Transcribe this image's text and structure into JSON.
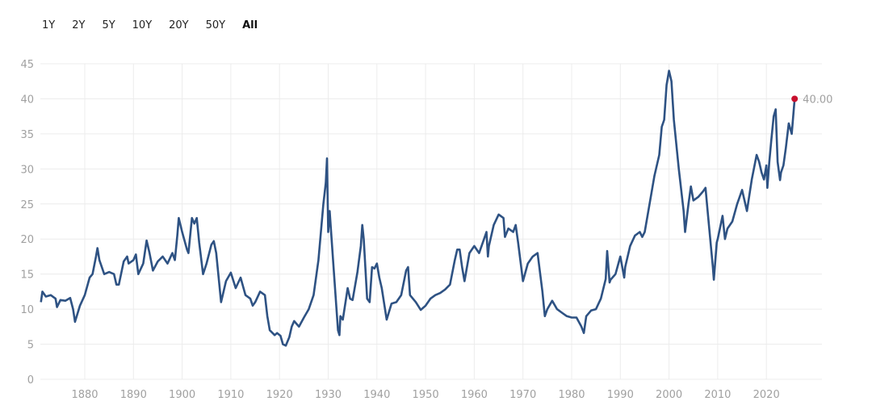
{
  "range_buttons": [
    {
      "label": "1Y",
      "active": false
    },
    {
      "label": "2Y",
      "active": false
    },
    {
      "label": "5Y",
      "active": false
    },
    {
      "label": "10Y",
      "active": false
    },
    {
      "label": "20Y",
      "active": false
    },
    {
      "label": "50Y",
      "active": false
    },
    {
      "label": "All",
      "active": true
    }
  ],
  "chart_data": {
    "type": "line",
    "title": "",
    "xlabel": "",
    "ylabel": "",
    "xlim": [
      1871,
      2025.8
    ],
    "ylim": [
      0,
      45
    ],
    "yticks": [
      "0",
      "5",
      "10",
      "15",
      "20",
      "25",
      "30",
      "35",
      "40",
      "45"
    ],
    "xticks": [
      "1880",
      "1890",
      "1900",
      "1910",
      "1920",
      "1930",
      "1940",
      "1950",
      "1960",
      "1970",
      "1980",
      "1990",
      "2000",
      "2010",
      "2020"
    ],
    "grid": true,
    "colors": {
      "line": "#2e5283",
      "last_point": "#c8102e",
      "grid": "#ececec",
      "tick_text": "#a0a0a0"
    },
    "last_value_label": "40.00",
    "series": [
      {
        "x": [
          1871,
          1871.3,
          1872,
          1873,
          1874,
          1874.3,
          1875,
          1876,
          1877,
          1877.6,
          1878,
          1879,
          1880,
          1881,
          1881.6,
          1882.3,
          1882.6,
          1883,
          1884,
          1885,
          1886,
          1886.5,
          1887,
          1888,
          1888.7,
          1889,
          1890,
          1890.5,
          1891,
          1892,
          1892.7,
          1893.3,
          1894,
          1895,
          1896,
          1897,
          1898,
          1898.5,
          1899,
          1899.3,
          1900,
          1901,
          1901.3,
          1902,
          1902.5,
          1903,
          1903.5,
          1904.3,
          1905,
          1906,
          1906.5,
          1907,
          1908,
          1909,
          1910,
          1911,
          1912,
          1913,
          1914,
          1914.5,
          1915,
          1916,
          1917,
          1917.5,
          1918,
          1919,
          1919.5,
          1920.2,
          1920.7,
          1921.3,
          1922,
          1922.5,
          1923,
          1924,
          1925,
          1926,
          1927,
          1928,
          1929,
          1929.5,
          1929.75,
          1930,
          1930.3,
          1931,
          1932,
          1932.3,
          1932.5,
          1933,
          1934,
          1934.5,
          1935,
          1936,
          1936.7,
          1937,
          1937.3,
          1938,
          1938.5,
          1939,
          1939.5,
          1940,
          1940.5,
          1941,
          1942,
          1943,
          1944,
          1945,
          1946,
          1946.4,
          1946.8,
          1948,
          1949,
          1950,
          1951,
          1952,
          1953,
          1954,
          1955,
          1956,
          1956.5,
          1957,
          1957.5,
          1958,
          1959,
          1960,
          1961,
          1962,
          1962.5,
          1962.8,
          1963,
          1964,
          1965,
          1966,
          1966.3,
          1967,
          1968,
          1968.5,
          1969,
          1970,
          1971,
          1972,
          1973,
          1974,
          1974.5,
          1975,
          1976,
          1977,
          1978,
          1979,
          1980,
          1981,
          1982,
          1982.5,
          1983,
          1984,
          1985,
          1986,
          1987,
          1987.3,
          1987.8,
          1988,
          1989,
          1990,
          1990.8,
          1991,
          1992,
          1993,
          1994,
          1994.5,
          1995,
          1996,
          1997,
          1998,
          1998.5,
          1999,
          1999.5,
          2000,
          2000.5,
          2001,
          2002,
          2003,
          2003.3,
          2004,
          2004.5,
          2005,
          2006,
          2007,
          2007.5,
          2008,
          2009,
          2009.2,
          2009.8,
          2010,
          2011,
          2011.5,
          2012,
          2013,
          2014,
          2015,
          2016,
          2017,
          2018,
          2018.5,
          2019,
          2019.5,
          2020,
          2020.2,
          2020.6,
          2021,
          2021.5,
          2021.9,
          2022.3,
          2022.8,
          2023,
          2023.5,
          2024,
          2024.6,
          2025.2,
          2025.8
        ],
        "values": [
          11,
          12.5,
          11.8,
          12,
          11.5,
          10.3,
          11.3,
          11.2,
          11.6,
          10,
          8.2,
          10.5,
          12,
          14.5,
          15,
          17.5,
          18.7,
          17,
          15,
          15.3,
          15,
          13.5,
          13.5,
          16.8,
          17.5,
          16.5,
          17,
          17.8,
          15,
          16.5,
          19.8,
          18,
          15.5,
          16.8,
          17.5,
          16.5,
          18,
          17,
          20.5,
          23,
          21,
          18.5,
          18,
          23,
          22.2,
          23,
          19.5,
          15,
          16.5,
          19.2,
          19.7,
          18,
          11,
          14,
          15.2,
          13,
          14.5,
          12,
          11.5,
          10.5,
          11,
          12.5,
          12,
          9,
          7,
          6.3,
          6.6,
          6.2,
          5,
          4.8,
          6,
          7.5,
          8.3,
          7.5,
          8.8,
          10,
          12,
          17,
          25,
          28,
          31.5,
          21,
          24,
          17,
          7,
          6.3,
          9,
          8.5,
          13,
          11.5,
          11.3,
          15.3,
          19,
          22,
          20,
          11.5,
          11,
          16,
          15.8,
          16.5,
          14.5,
          13,
          8.5,
          10.8,
          11,
          12,
          15.5,
          16,
          12,
          11,
          9.9,
          10.5,
          11.5,
          12,
          12.3,
          12.8,
          13.5,
          17,
          18.5,
          18.5,
          16,
          14,
          18,
          19,
          18,
          20,
          21,
          17.5,
          19,
          22,
          23.5,
          23,
          20.3,
          21.5,
          21,
          22,
          19.5,
          14,
          16.5,
          17.5,
          18,
          12.5,
          9,
          10,
          11.2,
          10,
          9.5,
          9,
          8.8,
          8.8,
          7.5,
          6.6,
          9,
          9.8,
          10,
          11.5,
          14.3,
          18.3,
          13.8,
          14.2,
          15,
          17.5,
          14.5,
          16,
          19,
          20.5,
          21,
          20.3,
          21,
          25,
          29,
          32,
          36,
          37,
          42,
          44,
          42.5,
          37,
          30,
          24,
          21,
          25,
          27.5,
          25.5,
          26,
          26.8,
          27.3,
          23.5,
          16,
          14.2,
          19.5,
          20,
          23.3,
          20,
          21.5,
          22.5,
          25,
          27,
          24,
          28.5,
          32,
          31,
          29.5,
          28.5,
          30.5,
          27.3,
          31,
          34,
          37.5,
          38.5,
          31,
          28.4,
          29.5,
          30.5,
          33,
          36.5,
          35,
          40
        ]
      }
    ]
  }
}
